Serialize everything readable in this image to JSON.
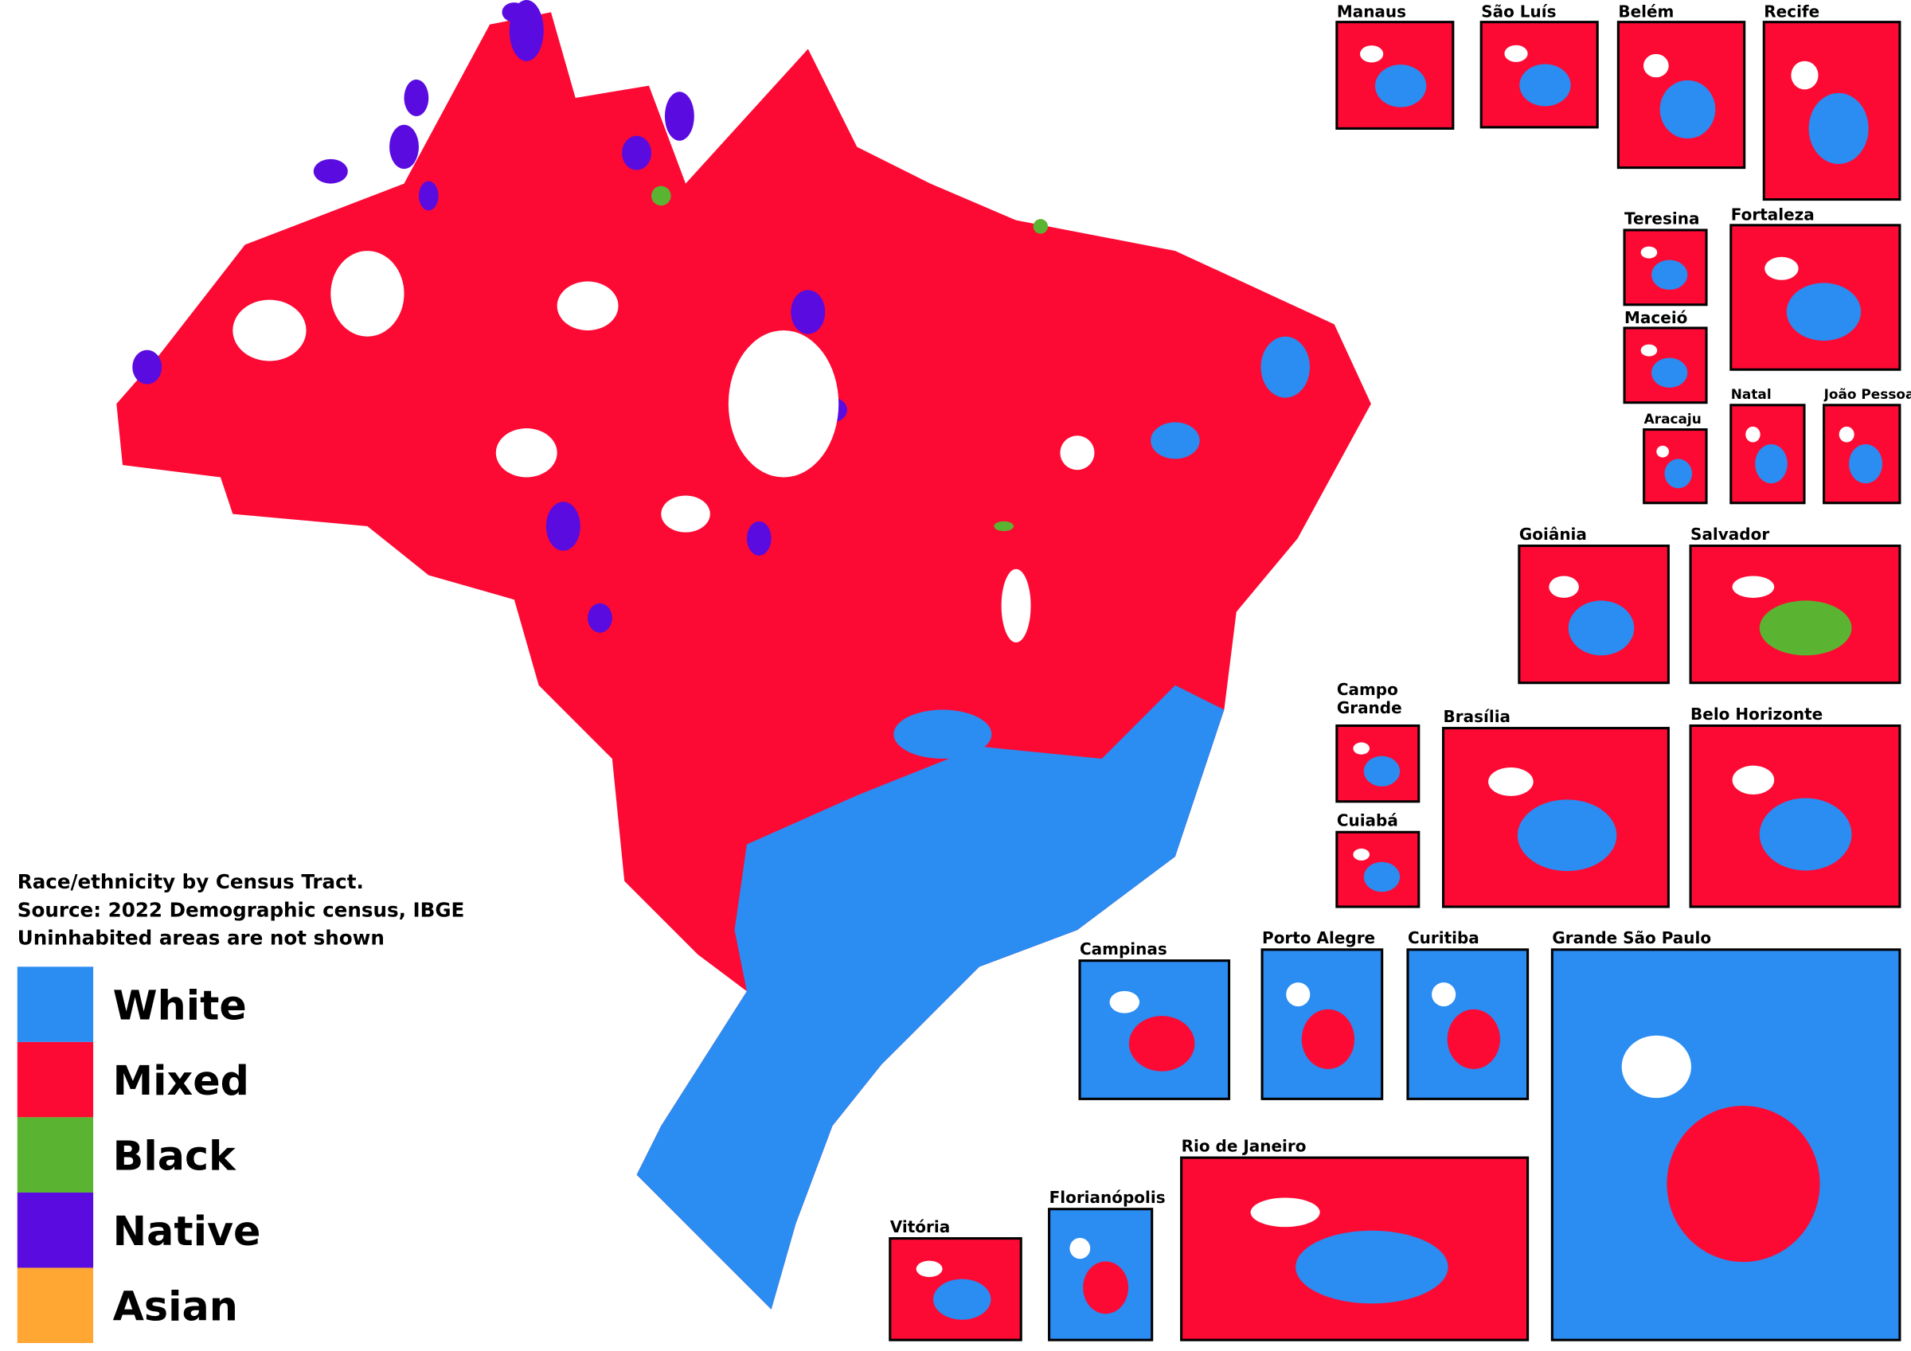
{
  "legend": {
    "title_lines": [
      "Race/ethnicity by Census Tract.",
      "Source: 2022 Demographic census, IBGE",
      "Uninhabited areas are not shown"
    ],
    "items": [
      {
        "name": "White",
        "color": "#2b8cf2"
      },
      {
        "name": "Mixed",
        "color": "#fc0a34"
      },
      {
        "name": "Black",
        "color": "#5bb431"
      },
      {
        "name": "Native",
        "color": "#5a0be0"
      },
      {
        "name": "Asian",
        "color": "#ffa633"
      }
    ]
  },
  "insets": [
    {
      "name": "Manaus"
    },
    {
      "name": "São Luís"
    },
    {
      "name": "Belém"
    },
    {
      "name": "Recife"
    },
    {
      "name": "Teresina"
    },
    {
      "name": "Fortaleza"
    },
    {
      "name": "Maceió"
    },
    {
      "name": "Aracaju"
    },
    {
      "name": "Natal"
    },
    {
      "name": "João Pessoa"
    },
    {
      "name": "Goiânia"
    },
    {
      "name": "Salvador"
    },
    {
      "name": "Campo Grande"
    },
    {
      "name": "Cuiabá"
    },
    {
      "name": "Brasília"
    },
    {
      "name": "Belo Horizonte"
    },
    {
      "name": "Campinas"
    },
    {
      "name": "Porto Alegre"
    },
    {
      "name": "Curitiba"
    },
    {
      "name": "Grande São Paulo"
    },
    {
      "name": "Rio de Janeiro"
    },
    {
      "name": "Vitória"
    },
    {
      "name": "Florianópolis"
    }
  ]
}
